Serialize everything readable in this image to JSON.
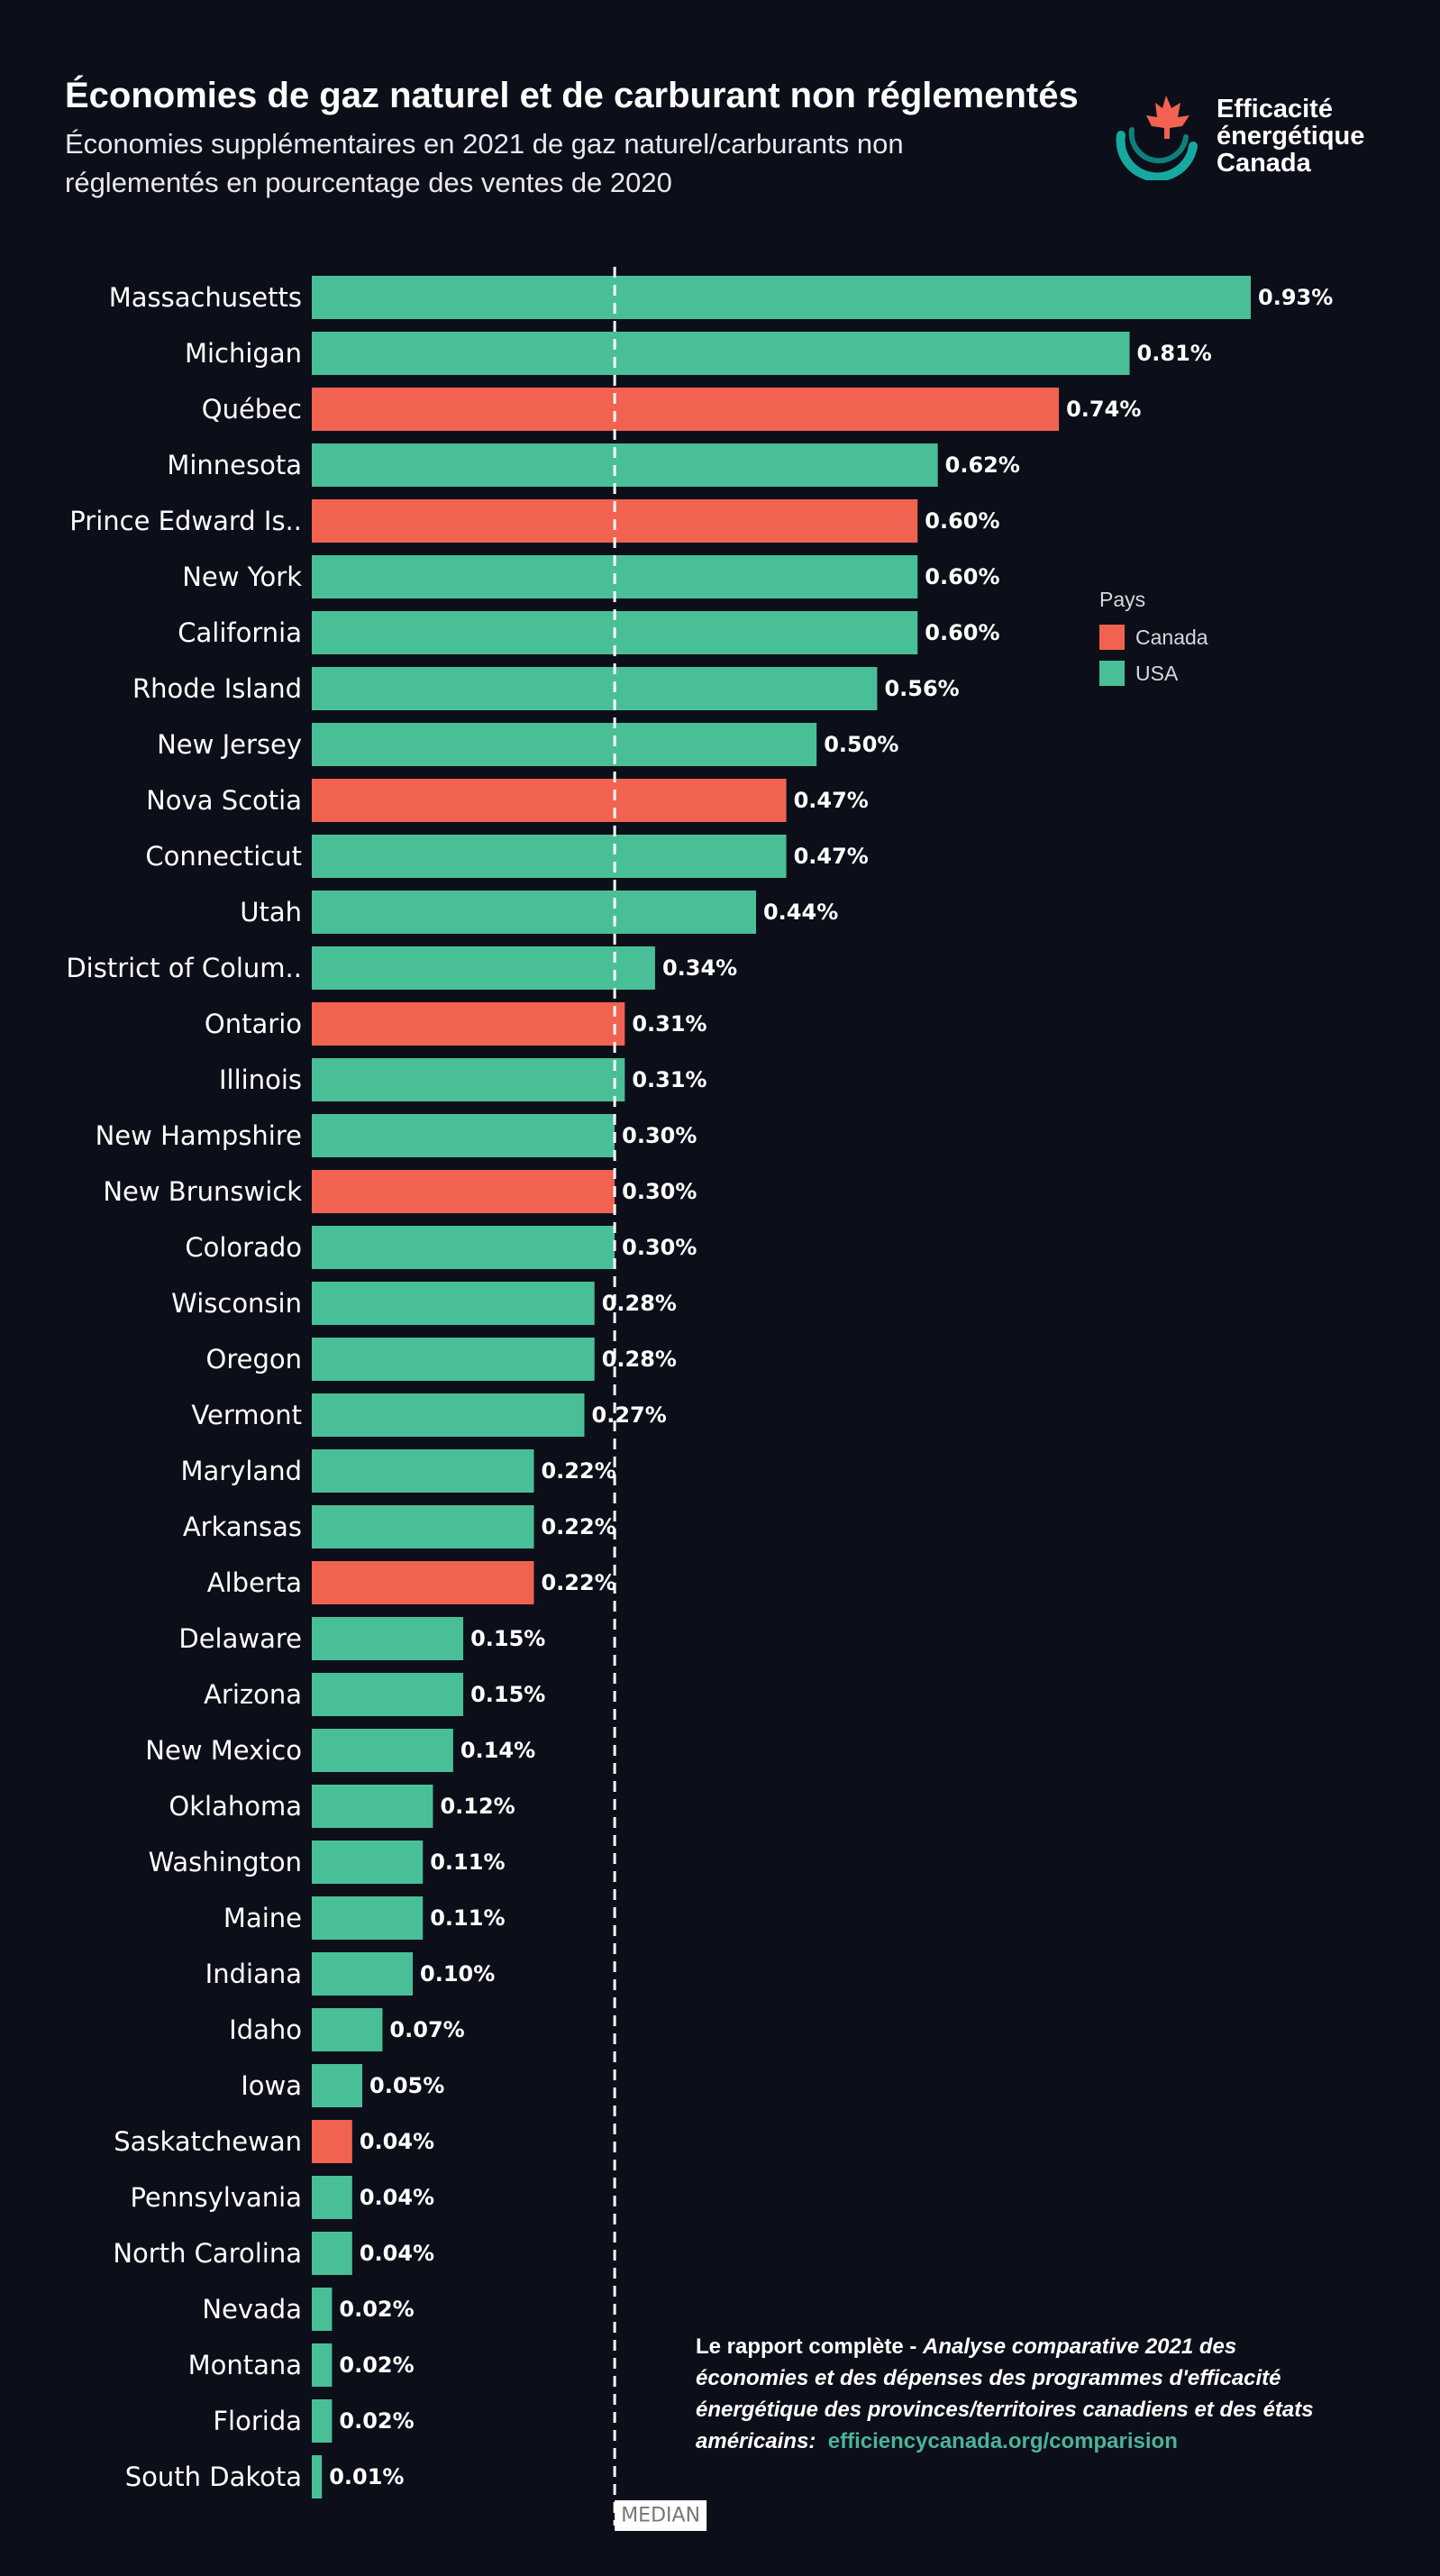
{
  "title": "Économies de gaz naturel et de carburant non réglementés",
  "subtitle": "Économies supplémentaires en 2021 de gaz naturel/carburants non réglementés en pourcentage des ventes de 2020",
  "logo": {
    "icon": "maple-leaf-swirl-logo-icon",
    "line1": "Efficacité",
    "line2": "énergétique",
    "line3": "Canada"
  },
  "legend": {
    "title": "Pays",
    "items": [
      {
        "label": "Canada",
        "color": "#f26250"
      },
      {
        "label": "USA",
        "color": "#49bf97"
      }
    ]
  },
  "median_label": "MEDIAN",
  "footnote": {
    "prefix": "Le rapport complète - ",
    "italic": "Analyse comparative 2021 des économies et des dépenses des programmes d'efficacité énergétique des provinces/territoires canadiens et des états américains:",
    "link": "efficiencycanada.org/comparision"
  },
  "chart_data": {
    "type": "bar",
    "orientation": "horizontal",
    "title": "Économies de gaz naturel et de carburant non réglementés",
    "median": 0.3,
    "value_format": "percent",
    "categories": [
      "Massachusetts",
      "Michigan",
      "Québec",
      "Minnesota",
      "Prince Edward Is..",
      "New York",
      "California",
      "Rhode Island",
      "New Jersey",
      "Nova Scotia",
      "Connecticut",
      "Utah",
      "District of Colum..",
      "Ontario",
      "Illinois",
      "New Hampshire",
      "New Brunswick",
      "Colorado",
      "Wisconsin",
      "Oregon",
      "Vermont",
      "Maryland",
      "Arkansas",
      "Alberta",
      "Delaware",
      "Arizona",
      "New Mexico",
      "Oklahoma",
      "Washington",
      "Maine",
      "Indiana",
      "Idaho",
      "Iowa",
      "Saskatchewan",
      "Pennsylvania",
      "North Carolina",
      "Nevada",
      "Montana",
      "Florida",
      "South Dakota"
    ],
    "values": [
      0.93,
      0.81,
      0.74,
      0.62,
      0.6,
      0.6,
      0.6,
      0.56,
      0.5,
      0.47,
      0.47,
      0.44,
      0.34,
      0.31,
      0.31,
      0.3,
      0.3,
      0.3,
      0.28,
      0.28,
      0.27,
      0.22,
      0.22,
      0.22,
      0.15,
      0.15,
      0.14,
      0.12,
      0.11,
      0.11,
      0.1,
      0.07,
      0.05,
      0.04,
      0.04,
      0.04,
      0.02,
      0.02,
      0.02,
      0.01
    ],
    "labels": [
      "0.93%",
      "0.81%",
      "0.74%",
      "0.62%",
      "0.60%",
      "0.60%",
      "0.60%",
      "0.56%",
      "0.50%",
      "0.47%",
      "0.47%",
      "0.44%",
      "0.34%",
      "0.31%",
      "0.31%",
      "0.30%",
      "0.30%",
      "0.30%",
      "0.28%",
      "0.28%",
      "0.27%",
      "0.22%",
      "0.22%",
      "0.22%",
      "0.15%",
      "0.15%",
      "0.14%",
      "0.12%",
      "0.11%",
      "0.11%",
      "0.10%",
      "0.07%",
      "0.05%",
      "0.04%",
      "0.04%",
      "0.04%",
      "0.02%",
      "0.02%",
      "0.02%",
      "0.01%"
    ],
    "country": [
      "USA",
      "USA",
      "Canada",
      "USA",
      "Canada",
      "USA",
      "USA",
      "USA",
      "USA",
      "Canada",
      "USA",
      "USA",
      "USA",
      "Canada",
      "USA",
      "USA",
      "Canada",
      "USA",
      "USA",
      "USA",
      "USA",
      "USA",
      "USA",
      "Canada",
      "USA",
      "USA",
      "USA",
      "USA",
      "USA",
      "USA",
      "USA",
      "USA",
      "USA",
      "Canada",
      "USA",
      "USA",
      "USA",
      "USA",
      "USA",
      "USA"
    ],
    "series_colors": {
      "Canada": "#f26250",
      "USA": "#49bf97"
    },
    "legend_position": "right",
    "grid": false
  }
}
